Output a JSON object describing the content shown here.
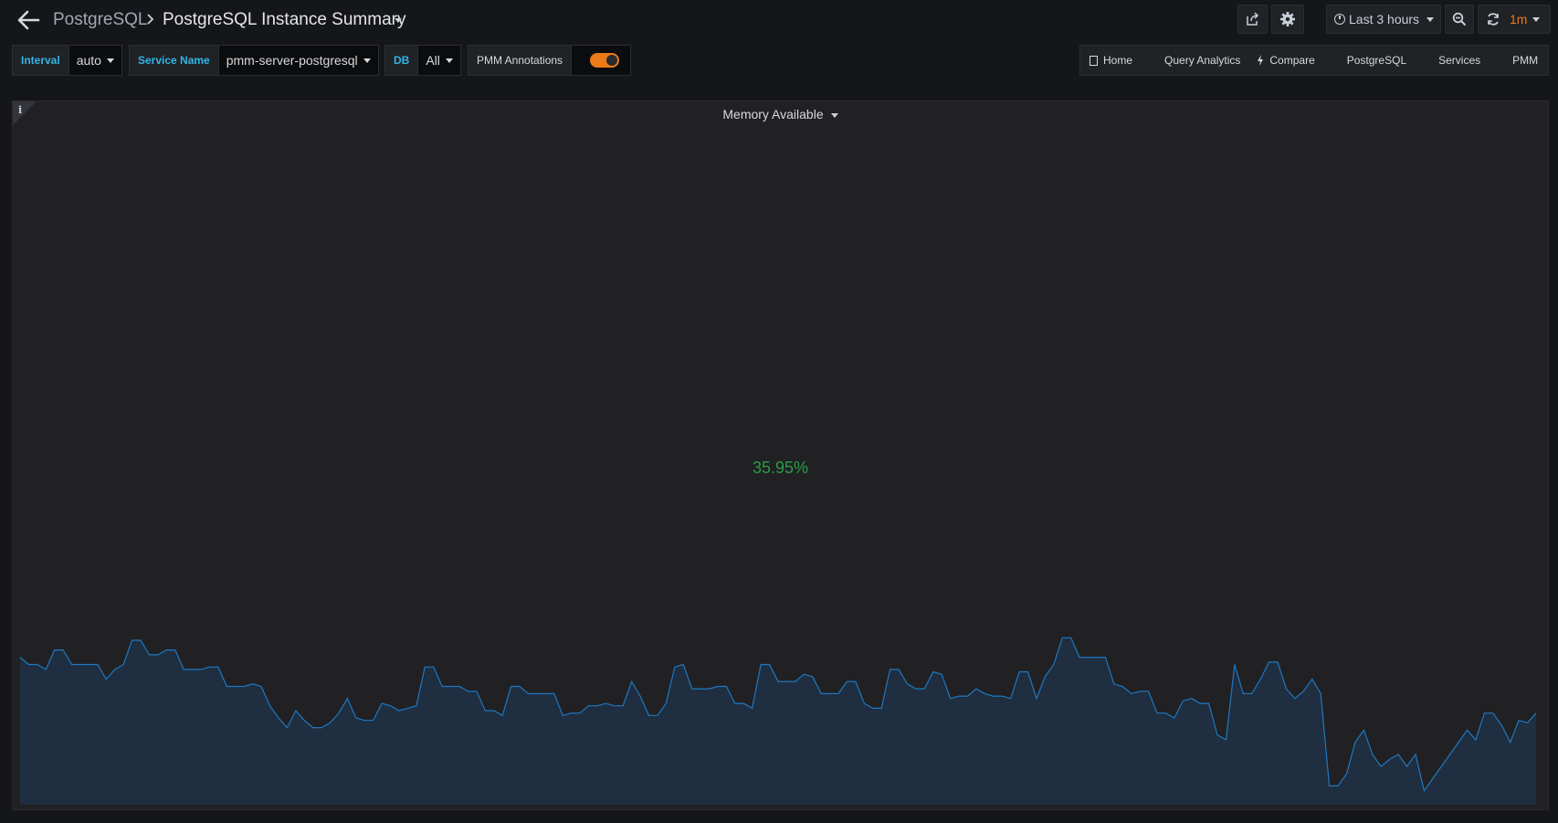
{
  "nav": {
    "breadcrumb_parent": "PostgreSQL",
    "dashboard_title": "PostgreSQL Instance Summary",
    "time_range": "Last 3 hours",
    "refresh_interval": "1m"
  },
  "variables": [
    {
      "label": "Interval",
      "value": "auto"
    },
    {
      "label": "Service Name",
      "value": "pmm-server-postgresql"
    },
    {
      "label": "DB",
      "value": "All"
    },
    {
      "label": "PMM Annotations",
      "toggle_on": true
    }
  ],
  "links": [
    {
      "label": "Home",
      "icon": "doc-icon"
    },
    {
      "label": "Query Analytics",
      "icon": "grid-icon"
    },
    {
      "label": "Compare",
      "icon": "bolt-icon"
    },
    {
      "label": "PostgreSQL",
      "icon": "bars-icon"
    },
    {
      "label": "Services",
      "icon": "bars-icon"
    },
    {
      "label": "PMM",
      "icon": "bars-icon"
    }
  ],
  "panel": {
    "title": "Memory Available",
    "value": "35.95%",
    "info_icon": "i",
    "value_color": "#299c46",
    "sparkline_color": "#1f78c1",
    "sparkline": [
      60,
      57,
      57,
      55,
      63,
      63,
      57,
      57,
      57,
      57,
      51,
      55,
      57,
      67,
      67,
      61,
      61,
      63,
      63,
      55,
      55,
      55,
      56,
      56,
      48,
      48,
      48,
      49,
      48,
      40,
      35,
      31,
      38,
      34,
      31,
      31,
      33,
      37,
      43,
      35,
      34,
      34,
      41,
      40,
      38,
      39,
      40,
      56,
      56,
      48,
      48,
      48,
      46,
      46,
      38,
      38,
      36,
      48,
      48,
      45,
      45,
      45,
      45,
      36,
      37,
      37,
      40,
      40,
      41,
      40,
      40,
      50,
      44,
      36,
      36,
      41,
      56,
      57,
      47,
      47,
      47,
      48,
      48,
      41,
      41,
      39,
      57,
      57,
      50,
      50,
      50,
      53,
      52,
      45,
      45,
      45,
      50,
      50,
      41,
      39,
      39,
      55,
      55,
      49,
      47,
      47,
      54,
      53,
      43,
      44,
      44,
      47,
      45,
      44,
      44,
      43,
      54,
      54,
      43,
      52,
      57,
      68,
      68,
      60,
      60,
      60,
      60,
      49,
      48,
      45,
      46,
      46,
      37,
      37,
      35,
      42,
      43,
      41,
      41,
      28,
      26,
      57,
      45,
      45,
      51,
      58,
      58,
      47,
      43,
      46,
      51,
      45,
      7,
      7,
      12,
      25,
      30,
      20,
      15,
      18,
      20,
      15,
      20,
      5,
      10,
      15,
      20,
      25,
      30,
      26,
      37,
      37,
      32,
      25,
      34,
      33,
      37
    ]
  }
}
